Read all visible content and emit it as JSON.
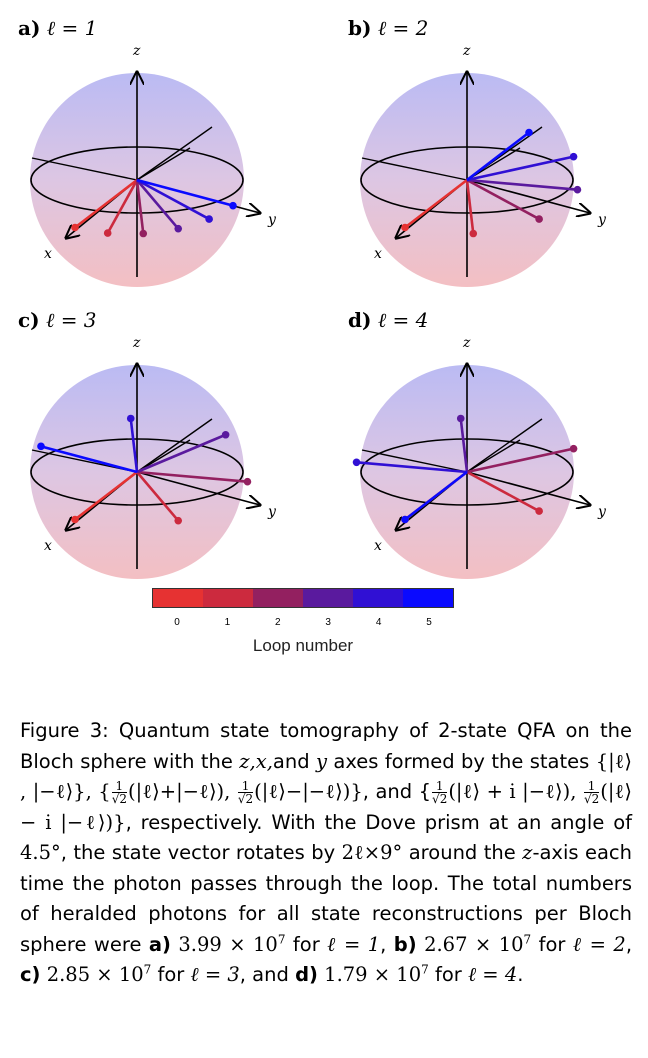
{
  "panels": [
    {
      "letter": "a)",
      "ell": "ℓ = 1",
      "axes": {
        "z": "z",
        "x": "x",
        "y": "y"
      },
      "loop_angles_deg": [
        0,
        18,
        36,
        54,
        72,
        90
      ]
    },
    {
      "letter": "b)",
      "ell": "ℓ = 2",
      "axes": {
        "z": "z",
        "x": "x",
        "y": "y"
      },
      "loop_angles_deg": [
        0,
        36,
        72,
        108,
        144,
        180
      ]
    },
    {
      "letter": "c)",
      "ell": "ℓ = 3",
      "axes": {
        "z": "z",
        "x": "x",
        "y": "y"
      },
      "loop_angles_deg": [
        0,
        54,
        108,
        162,
        216,
        270
      ]
    },
    {
      "letter": "d)",
      "ell": "ℓ = 4",
      "axes": {
        "z": "z",
        "x": "x",
        "y": "y"
      },
      "loop_angles_deg": [
        0,
        72,
        144,
        216,
        288,
        360
      ]
    }
  ],
  "colorbar": {
    "label": "Loop number",
    "ticks": [
      "0",
      "1",
      "2",
      "3",
      "4",
      "5"
    ],
    "colors": [
      "#e63232",
      "#cc2a3e",
      "#932060",
      "#5a1a9e",
      "#3010d4",
      "#0a0aff"
    ]
  },
  "caption": {
    "p1": "Figure 3: Quantum state tomography of 2-state QFA on the Bloch sphere with the ",
    "axes_list": "z,x,",
    "p1b": "and ",
    "yvar": "y",
    "p2": " axes formed by the states ",
    "set1": "{|ℓ⟩ , |−ℓ⟩}",
    "comma1": ", {",
    "f1": "(|ℓ⟩+|−ℓ⟩), ",
    "f2": "(|ℓ⟩−|−ℓ⟩)}",
    "p3": ", and {",
    "f3": "(|ℓ⟩ + i |−ℓ⟩), ",
    "f4": "(|ℓ⟩ − i |−ℓ⟩)}",
    "p4": ", respectively. With the Dove prism at an angle of ",
    "angle": "4.5°",
    "p5": ", the state vector rotates by ",
    "rot": "2ℓ×9°",
    "p6": " around the ",
    "zaxis": "z",
    "p7": "-axis each time the photon passes through the loop. The total numbers of heralded photons for all state reconstructions per Bloch sphere were ",
    "frac_num": "1",
    "frac_den": "√2",
    "counts": [
      {
        "label": "a)",
        "mant": "3.99 × 10",
        "exp": "7",
        "for": " for ",
        "ell": "ℓ = 1",
        "sep": ", "
      },
      {
        "label": "b)",
        "mant": "2.67 × 10",
        "exp": "7",
        "for": " for ",
        "ell": "ℓ = 2",
        "sep": ", "
      },
      {
        "label": "c)",
        "mant": "2.85 × 10",
        "exp": "7",
        "for": " for ",
        "ell": "ℓ = 3",
        "sep": ", and "
      },
      {
        "label": "d)",
        "mant": "1.79 × 10",
        "exp": "7",
        "for": " for ",
        "ell": "ℓ = 4",
        "sep": "."
      }
    ]
  }
}
